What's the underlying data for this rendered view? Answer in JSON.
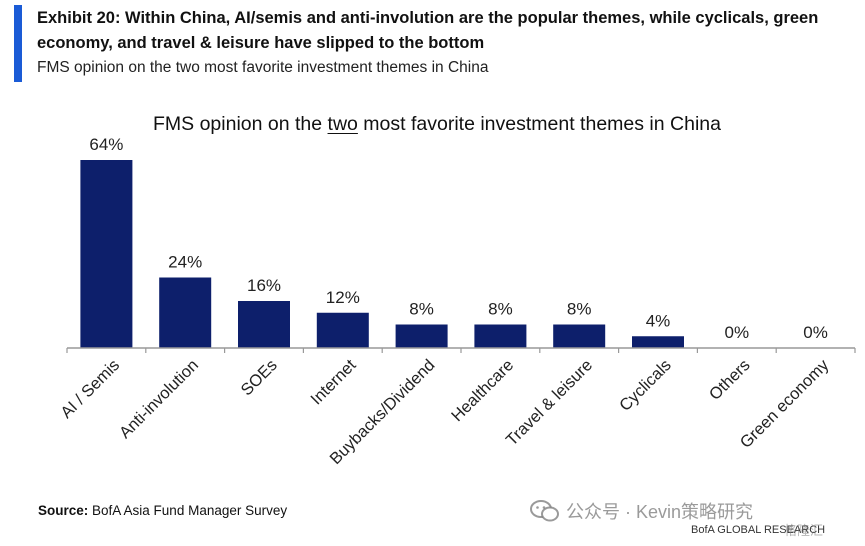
{
  "header": {
    "title": "Exhibit 20: Within China, AI/semis and anti-involution are the popular themes, while cyclicals, green economy, and travel & leisure have slipped to the bottom",
    "subtitle": "FMS opinion on the two most favorite investment themes in China"
  },
  "chart_title": {
    "prefix": "FMS opinion on the ",
    "emphasis": "two",
    "suffix": " most favorite investment themes in China"
  },
  "chart_data": {
    "type": "bar",
    "title": "FMS opinion on the two most favorite investment themes in China",
    "categories": [
      "AI / Semis",
      "Anti-involution",
      "SOEs",
      "Internet",
      "Buybacks/Dividend",
      "Healthcare",
      "Travel & leisure",
      "Cyclicals",
      "Others",
      "Green economy"
    ],
    "values": [
      64,
      24,
      16,
      12,
      8,
      8,
      8,
      4,
      0,
      0
    ],
    "value_labels": [
      "64%",
      "24%",
      "16%",
      "12%",
      "8%",
      "8%",
      "8%",
      "4%",
      "0%",
      "0%"
    ],
    "unit": "%",
    "ylim": [
      0,
      64
    ],
    "grid": false,
    "bar_color": "#0d1f6b",
    "axis_color": "#999999"
  },
  "source": {
    "label": "Source:",
    "text": " BofA Asia Fund Manager Survey"
  },
  "footer_credit": "BofA GLOBAL RESEARCH",
  "watermark": {
    "icon": "wechat-icon",
    "text": "公众号 · Kevin策略研究",
    "text2": "格隆汇"
  }
}
